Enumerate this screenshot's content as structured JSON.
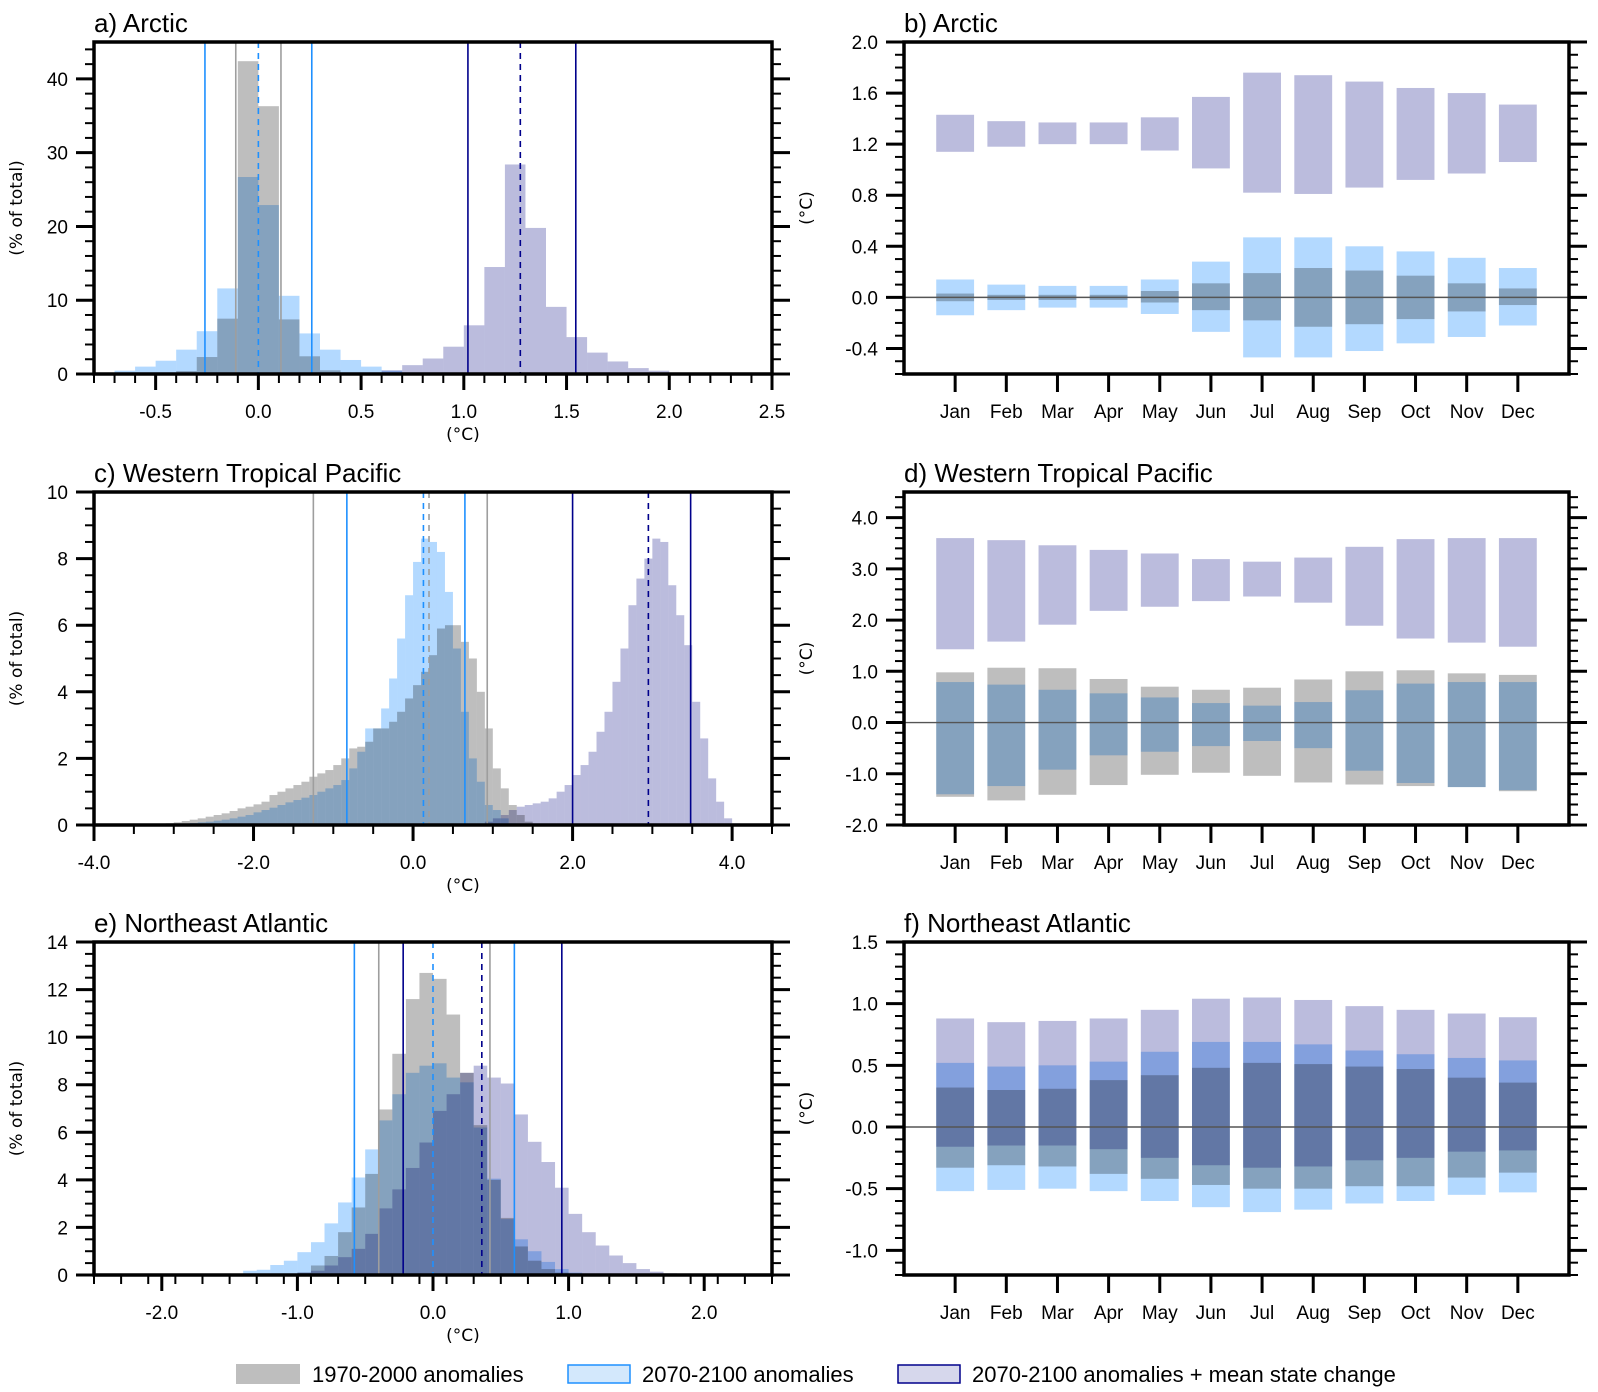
{
  "colors": {
    "gray_fill": "#bebebe",
    "blue_fill": "#b3d9ff",
    "purple_fill": "#bbbcdd",
    "gray_line": "#9e9e9e",
    "blue_line": "#1e90ff",
    "navy_line": "#00008b",
    "zero_line": "#555555"
  },
  "legend": {
    "items": [
      {
        "label": "1970-2000 anomalies",
        "series": "gray"
      },
      {
        "label": "2070-2100 anomalies",
        "series": "blue"
      },
      {
        "label": "2070-2100 anomalies + mean state change",
        "series": "purple"
      }
    ]
  },
  "chart_data": [
    {
      "id": "a",
      "type": "bar",
      "subtype": "histogram",
      "title": "a) Arctic",
      "xlabel": "(°C)",
      "ylabel": "(% of total)",
      "xlim": [
        -0.8,
        2.5
      ],
      "ylim": [
        0,
        45
      ],
      "xticks": [
        -0.5,
        0.0,
        0.5,
        1.0,
        1.5,
        2.0,
        2.5
      ],
      "xtick_labels": [
        "-0.5",
        "0.0",
        "0.5",
        "1.0",
        "1.5",
        "2.0",
        "2.5"
      ],
      "xminor": 0.1,
      "yticks": [
        0,
        10,
        20,
        30,
        40
      ],
      "ytick_labels": [
        "0",
        "10",
        "20",
        "30",
        "40"
      ],
      "yminor": 2,
      "bin_width": 0.1,
      "series": [
        {
          "name": "1970-2000 anomalies",
          "key": "gray",
          "bin_start": -0.4,
          "values": [
            0.4,
            2.3,
            7.5,
            42.4,
            36.3,
            7.4,
            2.4,
            0.5,
            0.1
          ]
        },
        {
          "name": "2070-2100 anomalies",
          "key": "blue",
          "bin_start": -0.7,
          "values": [
            0.45,
            1.0,
            1.8,
            3.3,
            5.8,
            11.6,
            26.7,
            22.9,
            10.6,
            5.5,
            3.3,
            1.9,
            1.0,
            0.45,
            0.2
          ]
        },
        {
          "name": "2070-2100 anomalies + mean state change",
          "key": "purple",
          "bin_start": 0.5,
          "values": [
            0.1,
            0.5,
            1.2,
            2.1,
            3.7,
            6.6,
            14.5,
            28.4,
            19.8,
            9.1,
            5.0,
            2.9,
            1.7,
            0.8,
            0.45,
            0.2
          ]
        }
      ],
      "vlines": [
        {
          "key": "gray",
          "x": -0.11,
          "style": "solid"
        },
        {
          "key": "gray",
          "x": 0.11,
          "style": "solid"
        },
        {
          "key": "blue",
          "x": -0.26,
          "style": "solid"
        },
        {
          "key": "blue",
          "x": 0.26,
          "style": "solid"
        },
        {
          "key": "blue",
          "x": 0.0,
          "style": "dashed"
        },
        {
          "key": "purple",
          "x": 1.02,
          "style": "solid"
        },
        {
          "key": "purple",
          "x": 1.545,
          "style": "solid"
        },
        {
          "key": "purple",
          "x": 1.275,
          "style": "dashed"
        }
      ]
    },
    {
      "id": "b",
      "type": "bar",
      "subtype": "floating-range",
      "title": "b) Arctic",
      "ylabel": "(°C)",
      "ylim": [
        -0.6,
        2.0
      ],
      "yticks": [
        -0.4,
        0.0,
        0.4,
        0.8,
        1.2,
        1.6,
        2.0
      ],
      "ytick_labels": [
        "-0.4",
        "0.0",
        "0.4",
        "0.8",
        "1.2",
        "1.6",
        "2.0"
      ],
      "yminor": 0.1,
      "categories": [
        "Jan",
        "Feb",
        "Mar",
        "Apr",
        "May",
        "Jun",
        "Jul",
        "Aug",
        "Sep",
        "Oct",
        "Nov",
        "Dec"
      ],
      "zero_line": true,
      "series": [
        {
          "name": "1970-2000 anomalies",
          "key": "gray",
          "low": [
            -0.03,
            -0.02,
            -0.02,
            -0.02,
            -0.04,
            -0.1,
            -0.18,
            -0.23,
            -0.21,
            -0.17,
            -0.11,
            -0.06
          ],
          "high": [
            0.03,
            0.02,
            0.02,
            0.02,
            0.05,
            0.11,
            0.19,
            0.23,
            0.21,
            0.17,
            0.11,
            0.07
          ]
        },
        {
          "name": "2070-2100 anomalies",
          "key": "blue",
          "low": [
            -0.14,
            -0.1,
            -0.08,
            -0.08,
            -0.13,
            -0.27,
            -0.47,
            -0.47,
            -0.42,
            -0.36,
            -0.31,
            -0.22
          ],
          "high": [
            0.14,
            0.1,
            0.09,
            0.09,
            0.14,
            0.28,
            0.47,
            0.47,
            0.4,
            0.36,
            0.31,
            0.23
          ]
        },
        {
          "name": "2070-2100 anomalies + mean state change",
          "key": "purple",
          "low": [
            1.14,
            1.18,
            1.2,
            1.2,
            1.15,
            1.01,
            0.82,
            0.81,
            0.86,
            0.92,
            0.97,
            1.06
          ],
          "high": [
            1.43,
            1.38,
            1.37,
            1.37,
            1.41,
            1.57,
            1.76,
            1.74,
            1.69,
            1.64,
            1.6,
            1.51
          ]
        }
      ]
    },
    {
      "id": "c",
      "type": "bar",
      "subtype": "histogram",
      "title": "c) Western Tropical Pacific",
      "xlabel": "(°C)",
      "ylabel": "(% of total)",
      "xlim": [
        -4.0,
        4.5
      ],
      "ylim": [
        0,
        10
      ],
      "xticks": [
        -4.0,
        -2.0,
        0.0,
        2.0,
        4.0
      ],
      "xtick_labels": [
        "-4.0",
        "-2.0",
        "0.0",
        "2.0",
        "4.0"
      ],
      "xminor": 0.5,
      "yticks": [
        0,
        2,
        4,
        6,
        8,
        10
      ],
      "ytick_labels": [
        "0",
        "2",
        "4",
        "6",
        "8",
        "10"
      ],
      "yminor": 0.5,
      "bin_width": 0.1,
      "series": [
        {
          "name": "1970-2000 anomalies",
          "key": "gray",
          "bin_start": -3.2,
          "values": [
            0.03,
            0.05,
            0.08,
            0.12,
            0.16,
            0.2,
            0.25,
            0.3,
            0.35,
            0.42,
            0.5,
            0.55,
            0.62,
            0.7,
            0.9,
            1.0,
            1.1,
            1.2,
            1.3,
            1.45,
            1.55,
            1.65,
            1.8,
            2.0,
            2.3,
            2.35,
            2.5,
            2.9,
            2.9,
            3.1,
            3.4,
            3.8,
            4.2,
            4.6,
            5.1,
            5.9,
            6.0,
            6.0,
            5.5,
            5.0,
            4.0,
            2.9,
            1.7,
            1.1,
            0.6,
            0.3,
            0.1
          ]
        },
        {
          "name": "2070-2100 anomalies",
          "key": "blue",
          "bin_start": -3.0,
          "values": [
            0.02,
            0.04,
            0.06,
            0.08,
            0.1,
            0.13,
            0.16,
            0.2,
            0.25,
            0.3,
            0.38,
            0.45,
            0.52,
            0.6,
            0.68,
            0.75,
            0.82,
            0.9,
            1.0,
            1.1,
            1.2,
            1.35,
            1.7,
            2.2,
            2.9,
            2.9,
            3.5,
            4.4,
            5.6,
            6.9,
            7.9,
            8.6,
            8.5,
            8.2,
            7.0,
            5.3,
            3.4,
            2.0,
            1.3,
            0.6,
            0.45,
            0.2,
            0.05
          ]
        },
        {
          "name": "2070-2100 anomalies + mean state change",
          "key": "purple",
          "bin_start": 0.9,
          "values": [
            0.1,
            0.2,
            0.3,
            0.45,
            0.55,
            0.6,
            0.65,
            0.7,
            0.8,
            1.0,
            1.2,
            1.5,
            1.8,
            2.2,
            2.8,
            3.4,
            4.3,
            5.3,
            6.6,
            7.4,
            8.0,
            8.6,
            8.5,
            7.2,
            6.3,
            5.4,
            3.7,
            2.6,
            1.4,
            0.7,
            0.2,
            0.05
          ]
        }
      ],
      "vlines": [
        {
          "key": "gray",
          "x": -1.25,
          "style": "solid"
        },
        {
          "key": "gray",
          "x": 0.93,
          "style": "solid"
        },
        {
          "key": "gray",
          "x": 0.2,
          "style": "dashed"
        },
        {
          "key": "blue",
          "x": -0.83,
          "style": "solid"
        },
        {
          "key": "blue",
          "x": 0.65,
          "style": "solid"
        },
        {
          "key": "blue",
          "x": 0.13,
          "style": "dashed"
        },
        {
          "key": "purple",
          "x": 2.0,
          "style": "solid"
        },
        {
          "key": "purple",
          "x": 3.48,
          "style": "solid"
        },
        {
          "key": "purple",
          "x": 2.95,
          "style": "dashed"
        }
      ]
    },
    {
      "id": "d",
      "type": "bar",
      "subtype": "floating-range",
      "title": "d) Western Tropical Pacific",
      "ylabel": "(°C)",
      "ylim": [
        -2.0,
        4.5
      ],
      "yticks": [
        -2.0,
        -1.0,
        0.0,
        1.0,
        2.0,
        3.0,
        4.0
      ],
      "ytick_labels": [
        "-2.0",
        "-1.0",
        "0.0",
        "1.0",
        "2.0",
        "3.0",
        "4.0"
      ],
      "yminor": 0.2,
      "categories": [
        "Jan",
        "Feb",
        "Mar",
        "Apr",
        "May",
        "Jun",
        "Jul",
        "Aug",
        "Sep",
        "Oct",
        "Nov",
        "Dec"
      ],
      "zero_line": true,
      "series": [
        {
          "name": "1970-2000 anomalies",
          "key": "gray",
          "low": [
            -1.45,
            -1.52,
            -1.41,
            -1.22,
            -1.02,
            -0.98,
            -1.04,
            -1.17,
            -1.21,
            -1.24,
            -1.26,
            -1.34
          ],
          "high": [
            0.98,
            1.07,
            1.06,
            0.85,
            0.7,
            0.64,
            0.68,
            0.84,
            1.0,
            1.02,
            0.96,
            0.93
          ]
        },
        {
          "name": "2070-2100 anomalies",
          "key": "blue",
          "low": [
            -1.4,
            -1.24,
            -0.92,
            -0.64,
            -0.57,
            -0.46,
            -0.36,
            -0.5,
            -0.94,
            -1.18,
            -1.26,
            -1.32
          ],
          "high": [
            0.79,
            0.74,
            0.64,
            0.57,
            0.49,
            0.38,
            0.33,
            0.4,
            0.63,
            0.76,
            0.79,
            0.79
          ]
        },
        {
          "name": "2070-2100 anomalies + mean state change",
          "key": "purple",
          "low": [
            1.43,
            1.58,
            1.91,
            2.18,
            2.26,
            2.37,
            2.46,
            2.34,
            1.89,
            1.64,
            1.56,
            1.48
          ],
          "high": [
            3.6,
            3.56,
            3.46,
            3.37,
            3.3,
            3.19,
            3.14,
            3.22,
            3.43,
            3.58,
            3.6,
            3.6
          ]
        }
      ]
    },
    {
      "id": "e",
      "type": "bar",
      "subtype": "histogram",
      "title": "e) Northeast Atlantic",
      "xlabel": "(°C)",
      "ylabel": "(% of total)",
      "xlim": [
        -2.5,
        2.5
      ],
      "ylim": [
        0,
        14
      ],
      "xticks": [
        -2.0,
        -1.0,
        0.0,
        1.0,
        2.0
      ],
      "xtick_labels": [
        "-2.0",
        "-1.0",
        "0.0",
        "1.0",
        "2.0"
      ],
      "xminor": 0.2,
      "yticks": [
        0,
        2,
        4,
        6,
        8,
        10,
        12,
        14
      ],
      "ytick_labels": [
        "0",
        "2",
        "4",
        "6",
        "8",
        "10",
        "12",
        "14"
      ],
      "yminor": 0.5,
      "bin_width": 0.1,
      "series": [
        {
          "name": "1970-2000 anomalies",
          "key": "gray",
          "bin_start": -1.0,
          "values": [
            0.1,
            0.4,
            0.8,
            1.8,
            2.84,
            4.25,
            6.96,
            9.3,
            11.6,
            12.7,
            12.45,
            10.95,
            8.5,
            6.3,
            4.0,
            2.4,
            1.2,
            0.6,
            0.25,
            0.1
          ]
        },
        {
          "name": "2070-2100 anomalies",
          "key": "blue",
          "bin_start": -1.4,
          "values": [
            0.18,
            0.22,
            0.42,
            0.6,
            0.96,
            1.38,
            2.17,
            3.05,
            4.1,
            5.28,
            6.5,
            7.6,
            8.5,
            8.8,
            8.9,
            8.3,
            8.1,
            6.2,
            4.05,
            2.35,
            1.5,
            1.0,
            0.55,
            0.25,
            0.1
          ]
        },
        {
          "name": "2070-2100 anomalies + mean state change",
          "key": "purple",
          "bin_start": -1.0,
          "values": [
            0.1,
            0.18,
            0.4,
            0.75,
            1.1,
            1.73,
            2.8,
            3.6,
            4.5,
            5.57,
            6.9,
            7.6,
            8.5,
            8.8,
            8.3,
            8.05,
            6.75,
            5.6,
            4.75,
            3.67,
            2.57,
            1.8,
            1.24,
            0.82,
            0.5,
            0.25,
            0.14,
            0.07
          ]
        }
      ],
      "vlines": [
        {
          "key": "gray",
          "x": -0.4,
          "style": "solid"
        },
        {
          "key": "gray",
          "x": 0.42,
          "style": "solid"
        },
        {
          "key": "blue",
          "x": -0.58,
          "style": "solid"
        },
        {
          "key": "blue",
          "x": 0.6,
          "style": "solid"
        },
        {
          "key": "blue",
          "x": 0.0,
          "style": "dashed"
        },
        {
          "key": "purple",
          "x": -0.22,
          "style": "solid"
        },
        {
          "key": "purple",
          "x": 0.95,
          "style": "solid"
        },
        {
          "key": "purple",
          "x": 0.36,
          "style": "dashed"
        }
      ]
    },
    {
      "id": "f",
      "type": "bar",
      "subtype": "floating-range",
      "title": "f) Northeast Atlantic",
      "ylabel": "(°C)",
      "ylim": [
        -1.2,
        1.5
      ],
      "yticks": [
        -1.0,
        -0.5,
        0.0,
        0.5,
        1.0,
        1.5
      ],
      "ytick_labels": [
        "-1.0",
        "-0.5",
        "0.0",
        "0.5",
        "1.0",
        "1.5"
      ],
      "yminor": 0.1,
      "categories": [
        "Jan",
        "Feb",
        "Mar",
        "Apr",
        "May",
        "Jun",
        "Jul",
        "Aug",
        "Sep",
        "Oct",
        "Nov",
        "Dec"
      ],
      "zero_line": true,
      "series": [
        {
          "name": "1970-2000 anomalies",
          "key": "gray",
          "low": [
            -0.33,
            -0.31,
            -0.32,
            -0.38,
            -0.42,
            -0.47,
            -0.5,
            -0.5,
            -0.48,
            -0.48,
            -0.41,
            -0.37
          ],
          "high": [
            0.32,
            0.3,
            0.31,
            0.38,
            0.42,
            0.48,
            0.52,
            0.51,
            0.49,
            0.47,
            0.4,
            0.36
          ]
        },
        {
          "name": "2070-2100 anomalies",
          "key": "blue",
          "low": [
            -0.52,
            -0.51,
            -0.5,
            -0.52,
            -0.6,
            -0.65,
            -0.69,
            -0.67,
            -0.62,
            -0.6,
            -0.55,
            -0.53
          ],
          "high": [
            0.52,
            0.49,
            0.5,
            0.53,
            0.61,
            0.69,
            0.69,
            0.67,
            0.62,
            0.59,
            0.56,
            0.54
          ]
        },
        {
          "name": "2070-2100 anomalies + mean state change",
          "key": "purple",
          "low": [
            -0.16,
            -0.15,
            -0.15,
            -0.18,
            -0.25,
            -0.31,
            -0.33,
            -0.32,
            -0.27,
            -0.25,
            -0.2,
            -0.19
          ],
          "high": [
            0.88,
            0.85,
            0.86,
            0.88,
            0.95,
            1.04,
            1.05,
            1.03,
            0.98,
            0.95,
            0.92,
            0.89
          ]
        }
      ]
    }
  ]
}
